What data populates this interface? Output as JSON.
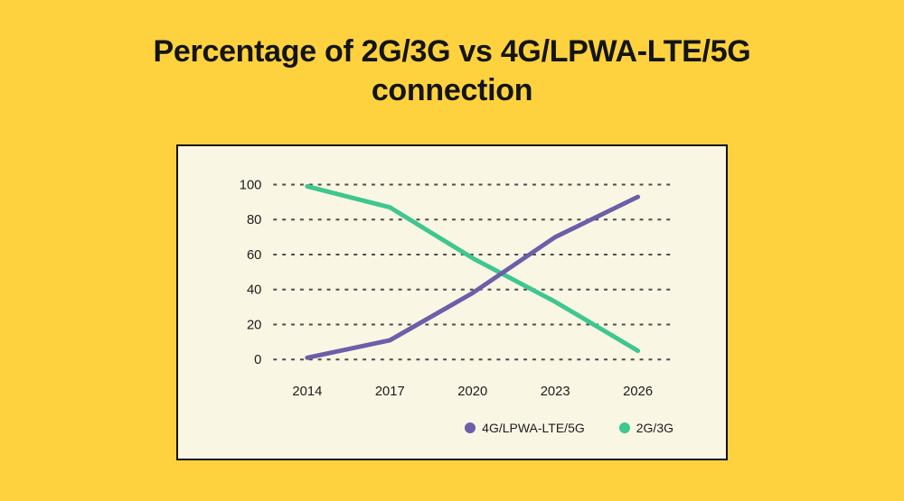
{
  "title": "Percentage of 2G/3G vs 4G/LPWA-LTE/5G connection",
  "colors": {
    "page_background": "#FDD23E",
    "panel_background": "#FAF6E4",
    "panel_border": "#111111",
    "grid": "#4D4D4D",
    "tick_text": "#1C1C1C",
    "title_text": "#141414",
    "legend_text": "#1C1C1C"
  },
  "chart_data": {
    "type": "line",
    "x": [
      "2014",
      "2017",
      "2020",
      "2023",
      "2026"
    ],
    "series": [
      {
        "name": "4G/LPWA-LTE/5G",
        "color": "#6A5FA8",
        "values": [
          1,
          11,
          38,
          70,
          93
        ]
      },
      {
        "name": "2G/3G",
        "color": "#3EC78F",
        "values": [
          99,
          87,
          58,
          33,
          5
        ]
      }
    ],
    "title": "Percentage of 2G/3G vs 4G/LPWA-LTE/5G connection",
    "xlabel": "",
    "ylabel": "",
    "ylim": [
      0,
      100
    ],
    "yticks": [
      0,
      20,
      40,
      60,
      80,
      100
    ],
    "grid": "horizontal-dashed",
    "legend_position": "bottom-right"
  }
}
